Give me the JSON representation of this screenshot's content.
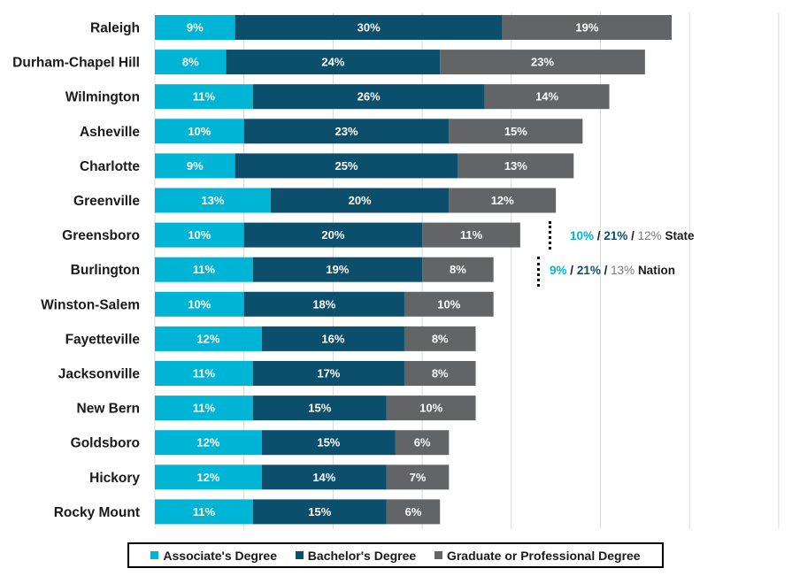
{
  "chart_data": {
    "type": "bar",
    "orientation": "horizontal",
    "stacked": true,
    "title": "",
    "xlabel": "",
    "ylabel": "",
    "xlim": [
      0,
      70
    ],
    "grid": true,
    "legend_position": "bottom",
    "categories": [
      "Raleigh",
      "Durham-Chapel Hill",
      "Wilmington",
      "Asheville",
      "Charlotte",
      "Greenville",
      "Greensboro",
      "Burlington",
      "Winston-Salem",
      "Fayetteville",
      "Jacksonville",
      "New Bern",
      "Goldsboro",
      "Hickory",
      "Rocky Mount"
    ],
    "series": [
      {
        "name": "Associate's Degree",
        "color": "#00b4d5",
        "values": [
          9,
          8,
          11,
          10,
          9,
          13,
          10,
          11,
          10,
          12,
          11,
          11,
          12,
          12,
          11
        ]
      },
      {
        "name": "Bachelor's Degree",
        "color": "#0b4f6c",
        "values": [
          30,
          24,
          26,
          23,
          25,
          20,
          20,
          19,
          18,
          16,
          17,
          15,
          15,
          14,
          15
        ]
      },
      {
        "name": "Graduate or Professional Degree",
        "color": "#636466",
        "values": [
          19,
          23,
          14,
          15,
          13,
          12,
          11,
          8,
          10,
          8,
          8,
          10,
          6,
          7,
          6
        ]
      }
    ],
    "value_suffix": "%",
    "annotations": [
      {
        "label": "State",
        "values": [
          "10%",
          "21%",
          "12%"
        ],
        "separator": "/"
      },
      {
        "label": "Nation",
        "values": [
          "9%",
          "21%",
          "13%"
        ],
        "separator": "/"
      }
    ]
  }
}
